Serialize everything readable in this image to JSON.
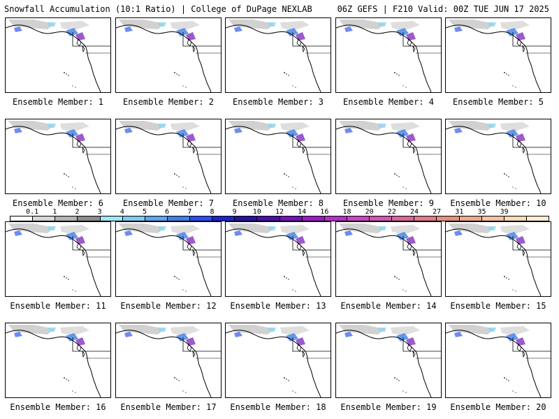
{
  "header": {
    "left_title": "Snowfall Accumulation (10:1 Ratio) | College of DuPage NEXLAB",
    "right_title": "06Z GEFS | F210 Valid: 00Z TUE JUN 17 2025"
  },
  "colorbar": {
    "labels": [
      "0.1",
      "1",
      "2",
      "3",
      "4",
      "5",
      "6",
      "7",
      "8",
      "9",
      "10",
      "12",
      "14",
      "16",
      "18",
      "20",
      "22",
      "24",
      "27",
      "31",
      "35",
      "39"
    ],
    "colors": [
      "#ffffff",
      "#d6d6d6",
      "#b4b4b4",
      "#8c8c8c",
      "#9fe6f5",
      "#7ecbf2",
      "#5aa6ee",
      "#3f7fe6",
      "#2a4ef0",
      "#1c24c8",
      "#2a0fa0",
      "#4a0da8",
      "#7312b8",
      "#9a1cc4",
      "#b530c8",
      "#c845c0",
      "#d255b0",
      "#d9659c",
      "#df7a8c",
      "#e6907f",
      "#eca88c",
      "#f2c2a0",
      "#f7dab6",
      "#fbeed0"
    ]
  },
  "panels": [
    {
      "label": "Ensemble Member: 1"
    },
    {
      "label": "Ensemble Member: 2"
    },
    {
      "label": "Ensemble Member: 3"
    },
    {
      "label": "Ensemble Member: 4"
    },
    {
      "label": "Ensemble Member: 5"
    },
    {
      "label": "Ensemble Member: 6"
    },
    {
      "label": "Ensemble Member: 7"
    },
    {
      "label": "Ensemble Member: 8"
    },
    {
      "label": "Ensemble Member: 9"
    },
    {
      "label": "Ensemble Member: 10"
    },
    {
      "label": "Ensemble Member: 11"
    },
    {
      "label": "Ensemble Member: 12"
    },
    {
      "label": "Ensemble Member: 13"
    },
    {
      "label": "Ensemble Member: 14"
    },
    {
      "label": "Ensemble Member: 15"
    },
    {
      "label": "Ensemble Member: 16"
    },
    {
      "label": "Ensemble Member: 17"
    },
    {
      "label": "Ensemble Member: 18"
    },
    {
      "label": "Ensemble Member: 19"
    },
    {
      "label": "Ensemble Member: 20"
    }
  ]
}
